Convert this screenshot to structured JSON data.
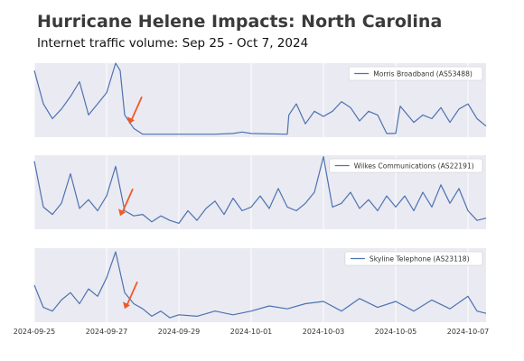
{
  "chart_data": {
    "type": "line",
    "title": "Hurricane Helene Impacts: North Carolina",
    "subtitle": "Internet traffic volume: Sep 25 - Oct 7, 2024",
    "x_range": [
      "2024-09-25",
      "2024-10-07 12:00"
    ],
    "x_ticks": [
      "2024-09-25",
      "2024-09-27",
      "2024-09-29",
      "2024-10-01",
      "2024-10-03",
      "2024-10-05",
      "2024-10-07"
    ],
    "grid": true,
    "legend_placement": "top-right",
    "colors": {
      "line": "#4c72b0",
      "arrow": "#f05a28",
      "panel_bg": "#eaeaf2",
      "grid": "#ffffff"
    },
    "panels": [
      {
        "name": "Morris Broadband (AS53488)",
        "ylim": [
          0,
          100
        ],
        "arrow_date": "2024-09-27 15:00",
        "points": [
          [
            "2024-09-25 00:00",
            90
          ],
          [
            "2024-09-25 06:00",
            45
          ],
          [
            "2024-09-25 12:00",
            25
          ],
          [
            "2024-09-25 18:00",
            38
          ],
          [
            "2024-09-26 00:00",
            55
          ],
          [
            "2024-09-26 06:00",
            75
          ],
          [
            "2024-09-26 12:00",
            30
          ],
          [
            "2024-09-26 18:00",
            45
          ],
          [
            "2024-09-27 00:00",
            60
          ],
          [
            "2024-09-27 06:00",
            100
          ],
          [
            "2024-09-27 09:00",
            90
          ],
          [
            "2024-09-27 12:00",
            30
          ],
          [
            "2024-09-27 18:00",
            12
          ],
          [
            "2024-09-28 00:00",
            4
          ],
          [
            "2024-09-28 12:00",
            4
          ],
          [
            "2024-09-29 00:00",
            4
          ],
          [
            "2024-09-30 00:00",
            4
          ],
          [
            "2024-09-30 12:00",
            5
          ],
          [
            "2024-09-30 18:00",
            7
          ],
          [
            "2024-10-01 00:00",
            5
          ],
          [
            "2024-10-02 00:00",
            4
          ],
          [
            "2024-10-02 01:00",
            30
          ],
          [
            "2024-10-02 06:00",
            45
          ],
          [
            "2024-10-02 12:00",
            18
          ],
          [
            "2024-10-02 18:00",
            35
          ],
          [
            "2024-10-03 00:00",
            28
          ],
          [
            "2024-10-03 06:00",
            35
          ],
          [
            "2024-10-03 12:00",
            48
          ],
          [
            "2024-10-03 18:00",
            40
          ],
          [
            "2024-10-04 00:00",
            22
          ],
          [
            "2024-10-04 06:00",
            35
          ],
          [
            "2024-10-04 12:00",
            30
          ],
          [
            "2024-10-04 18:00",
            5
          ],
          [
            "2024-10-05 00:00",
            5
          ],
          [
            "2024-10-05 03:00",
            42
          ],
          [
            "2024-10-05 12:00",
            20
          ],
          [
            "2024-10-05 18:00",
            30
          ],
          [
            "2024-10-06 00:00",
            25
          ],
          [
            "2024-10-06 06:00",
            40
          ],
          [
            "2024-10-06 12:00",
            20
          ],
          [
            "2024-10-06 18:00",
            38
          ],
          [
            "2024-10-07 00:00",
            45
          ],
          [
            "2024-10-07 06:00",
            25
          ],
          [
            "2024-10-07 12:00",
            15
          ]
        ]
      },
      {
        "name": "Wilkes Communications (AS22191)",
        "ylim": [
          0,
          100
        ],
        "arrow_date": "2024-09-27 09:00",
        "points": [
          [
            "2024-09-25 00:00",
            92
          ],
          [
            "2024-09-25 06:00",
            30
          ],
          [
            "2024-09-25 12:00",
            20
          ],
          [
            "2024-09-25 18:00",
            35
          ],
          [
            "2024-09-26 00:00",
            75
          ],
          [
            "2024-09-26 06:00",
            28
          ],
          [
            "2024-09-26 12:00",
            40
          ],
          [
            "2024-09-26 18:00",
            25
          ],
          [
            "2024-09-27 00:00",
            45
          ],
          [
            "2024-09-27 06:00",
            85
          ],
          [
            "2024-09-27 12:00",
            25
          ],
          [
            "2024-09-27 18:00",
            18
          ],
          [
            "2024-09-28 00:00",
            20
          ],
          [
            "2024-09-28 06:00",
            10
          ],
          [
            "2024-09-28 12:00",
            18
          ],
          [
            "2024-09-28 18:00",
            12
          ],
          [
            "2024-09-29 00:00",
            8
          ],
          [
            "2024-09-29 06:00",
            25
          ],
          [
            "2024-09-29 12:00",
            12
          ],
          [
            "2024-09-29 18:00",
            28
          ],
          [
            "2024-09-30 00:00",
            38
          ],
          [
            "2024-09-30 06:00",
            20
          ],
          [
            "2024-09-30 12:00",
            42
          ],
          [
            "2024-09-30 18:00",
            25
          ],
          [
            "2024-10-01 00:00",
            30
          ],
          [
            "2024-10-01 06:00",
            45
          ],
          [
            "2024-10-01 12:00",
            28
          ],
          [
            "2024-10-01 18:00",
            55
          ],
          [
            "2024-10-02 00:00",
            30
          ],
          [
            "2024-10-02 06:00",
            25
          ],
          [
            "2024-10-02 12:00",
            35
          ],
          [
            "2024-10-02 18:00",
            50
          ],
          [
            "2024-10-03 00:00",
            98
          ],
          [
            "2024-10-03 06:00",
            30
          ],
          [
            "2024-10-03 12:00",
            35
          ],
          [
            "2024-10-03 18:00",
            50
          ],
          [
            "2024-10-04 00:00",
            28
          ],
          [
            "2024-10-04 06:00",
            40
          ],
          [
            "2024-10-04 12:00",
            25
          ],
          [
            "2024-10-04 18:00",
            45
          ],
          [
            "2024-10-05 00:00",
            30
          ],
          [
            "2024-10-05 06:00",
            45
          ],
          [
            "2024-10-05 12:00",
            25
          ],
          [
            "2024-10-05 18:00",
            50
          ],
          [
            "2024-10-06 00:00",
            30
          ],
          [
            "2024-10-06 06:00",
            60
          ],
          [
            "2024-10-06 12:00",
            35
          ],
          [
            "2024-10-06 18:00",
            55
          ],
          [
            "2024-10-07 00:00",
            25
          ],
          [
            "2024-10-07 06:00",
            12
          ],
          [
            "2024-10-07 12:00",
            15
          ]
        ]
      },
      {
        "name": "Skyline Telephone (AS23118)",
        "ylim": [
          0,
          100
        ],
        "arrow_date": "2024-09-27 12:00",
        "points": [
          [
            "2024-09-25 00:00",
            50
          ],
          [
            "2024-09-25 06:00",
            20
          ],
          [
            "2024-09-25 12:00",
            15
          ],
          [
            "2024-09-25 18:00",
            30
          ],
          [
            "2024-09-26 00:00",
            40
          ],
          [
            "2024-09-26 06:00",
            25
          ],
          [
            "2024-09-26 12:00",
            45
          ],
          [
            "2024-09-26 18:00",
            35
          ],
          [
            "2024-09-27 00:00",
            60
          ],
          [
            "2024-09-27 06:00",
            95
          ],
          [
            "2024-09-27 12:00",
            40
          ],
          [
            "2024-09-27 18:00",
            25
          ],
          [
            "2024-09-28 00:00",
            18
          ],
          [
            "2024-09-28 06:00",
            8
          ],
          [
            "2024-09-28 12:00",
            15
          ],
          [
            "2024-09-28 18:00",
            6
          ],
          [
            "2024-09-29 00:00",
            10
          ],
          [
            "2024-09-29 12:00",
            8
          ],
          [
            "2024-09-30 00:00",
            15
          ],
          [
            "2024-09-30 12:00",
            10
          ],
          [
            "2024-10-01 00:00",
            15
          ],
          [
            "2024-10-01 12:00",
            22
          ],
          [
            "2024-10-02 00:00",
            18
          ],
          [
            "2024-10-02 12:00",
            25
          ],
          [
            "2024-10-03 00:00",
            28
          ],
          [
            "2024-10-03 12:00",
            15
          ],
          [
            "2024-10-04 00:00",
            32
          ],
          [
            "2024-10-04 12:00",
            20
          ],
          [
            "2024-10-05 00:00",
            28
          ],
          [
            "2024-10-05 12:00",
            15
          ],
          [
            "2024-10-06 00:00",
            30
          ],
          [
            "2024-10-06 12:00",
            18
          ],
          [
            "2024-10-07 00:00",
            35
          ],
          [
            "2024-10-07 06:00",
            15
          ],
          [
            "2024-10-07 12:00",
            12
          ]
        ]
      }
    ]
  }
}
